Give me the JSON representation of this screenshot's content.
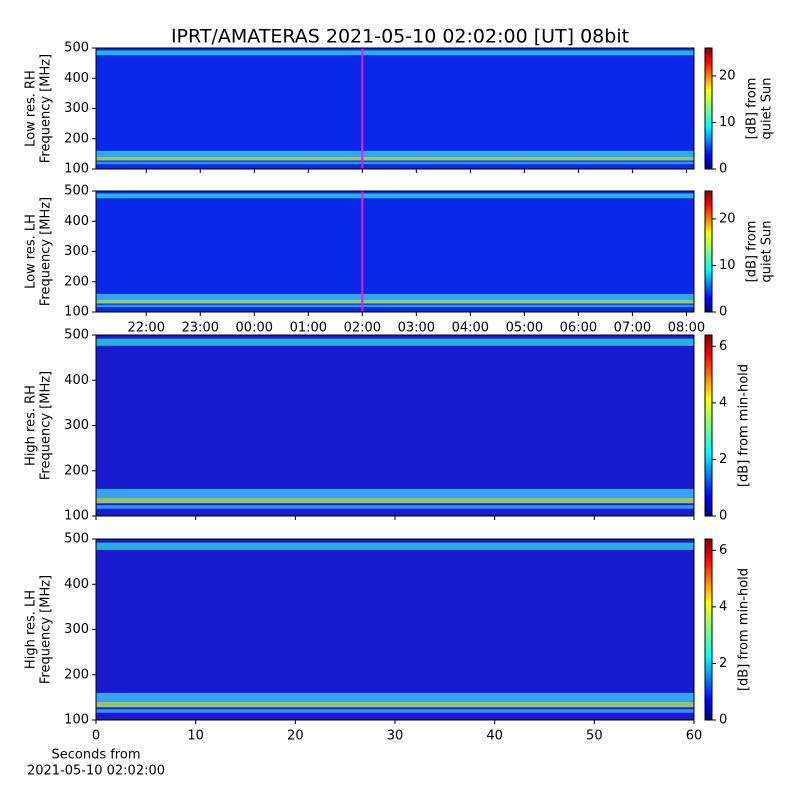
{
  "title": "IPRT/AMATERAS 2021-05-10 02:02:00 [UT]   08bit",
  "chart_data": [
    {
      "type": "heatmap",
      "ylabel": [
        "Low res. RH",
        "Frequency [MHz]"
      ],
      "ylim": [
        100,
        500
      ],
      "yticks": [
        100,
        200,
        300,
        400,
        500
      ],
      "xlim": [
        -2.93,
        8.14
      ],
      "xticks": [
        -2,
        -1,
        0,
        1,
        2,
        3,
        4,
        5,
        6,
        7,
        8
      ],
      "marker_x": 2,
      "marker_color": "#e020e0",
      "colorbar": {
        "label": [
          "[dB] from",
          "quiet Sun"
        ],
        "lim": [
          0,
          26
        ],
        "ticks": [
          0,
          10,
          20
        ]
      }
    },
    {
      "type": "heatmap",
      "ylabel": [
        "Low res. LH",
        "Frequency [MHz]"
      ],
      "ylim": [
        100,
        500
      ],
      "yticks": [
        100,
        200,
        300,
        400,
        500
      ],
      "xlim": [
        -2.93,
        8.14
      ],
      "xticks": [
        {
          "value": -2,
          "label": "22:00"
        },
        {
          "value": -1,
          "label": "23:00"
        },
        {
          "value": 0,
          "label": "00:00"
        },
        {
          "value": 1,
          "label": "01:00"
        },
        {
          "value": 2,
          "label": "02:00"
        },
        {
          "value": 3,
          "label": "03:00"
        },
        {
          "value": 4,
          "label": "04:00"
        },
        {
          "value": 5,
          "label": "05:00"
        },
        {
          "value": 6,
          "label": "06:00"
        },
        {
          "value": 7,
          "label": "07:00"
        },
        {
          "value": 8,
          "label": "08:00"
        }
      ],
      "marker_x": 2,
      "marker_color": "#e020e0",
      "colorbar": {
        "label": [
          "[dB] from",
          "quiet Sun"
        ],
        "lim": [
          0,
          26
        ],
        "ticks": [
          0,
          10,
          20
        ]
      }
    },
    {
      "type": "heatmap",
      "ylabel": [
        "High res. RH",
        "Frequency [MHz]"
      ],
      "ylim": [
        100,
        500
      ],
      "yticks": [
        100,
        200,
        300,
        400,
        500
      ],
      "xlim": [
        0,
        60
      ],
      "xticks": [
        0,
        10,
        20,
        30,
        40,
        50,
        60
      ],
      "colorbar": {
        "label": [
          "[dB] from min-hold"
        ],
        "lim": [
          0,
          6.4
        ],
        "ticks": [
          0,
          2,
          4,
          6
        ]
      }
    },
    {
      "type": "heatmap",
      "ylabel": [
        "High res. LH",
        "Frequency [MHz]"
      ],
      "ylim": [
        100,
        500
      ],
      "yticks": [
        100,
        200,
        300,
        400,
        500
      ],
      "xlim": [
        0,
        60
      ],
      "xticks": [
        {
          "value": 0,
          "label": "0"
        },
        {
          "value": 10,
          "label": "10"
        },
        {
          "value": 20,
          "label": "20"
        },
        {
          "value": 30,
          "label": "30"
        },
        {
          "value": 40,
          "label": "40"
        },
        {
          "value": 50,
          "label": "50"
        },
        {
          "value": 60,
          "label": "60"
        }
      ],
      "xlabel": [
        "Seconds from",
        "2021-05-10 02:02:00"
      ],
      "colorbar": {
        "label": [
          "[dB] from min-hold"
        ],
        "lim": [
          0,
          6.4
        ],
        "ticks": [
          0,
          2,
          4,
          6
        ]
      }
    }
  ]
}
